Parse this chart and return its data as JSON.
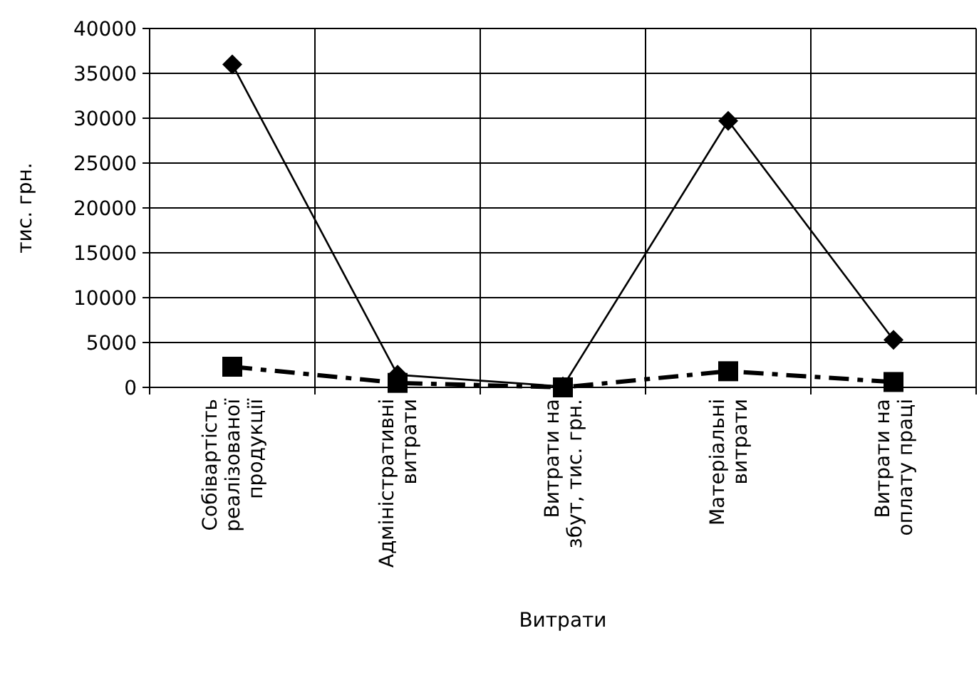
{
  "chart_data": {
    "type": "line",
    "xlabel": "Витрати",
    "ylabel": "тис. грн.",
    "categories": [
      "Собівартість реалізованої продукції",
      "Адміністративні витрати",
      "Витрати на збут, тис. грн.",
      "Матеріальні витрати",
      "Витрати на оплату праці"
    ],
    "series": [
      {
        "color": "#000000",
        "marker": "diamond",
        "line_style": "solid",
        "values": [
          36000,
          1400,
          100,
          29700,
          5300
        ]
      },
      {
        "color": "#000000",
        "marker": "square",
        "line_style": "dashed",
        "values": [
          2300,
          500,
          0,
          1800,
          600
        ]
      }
    ],
    "ylim": [
      0,
      40000
    ],
    "yticks": [
      0,
      5000,
      10000,
      15000,
      20000,
      25000,
      30000,
      35000,
      40000
    ],
    "grid": true
  }
}
